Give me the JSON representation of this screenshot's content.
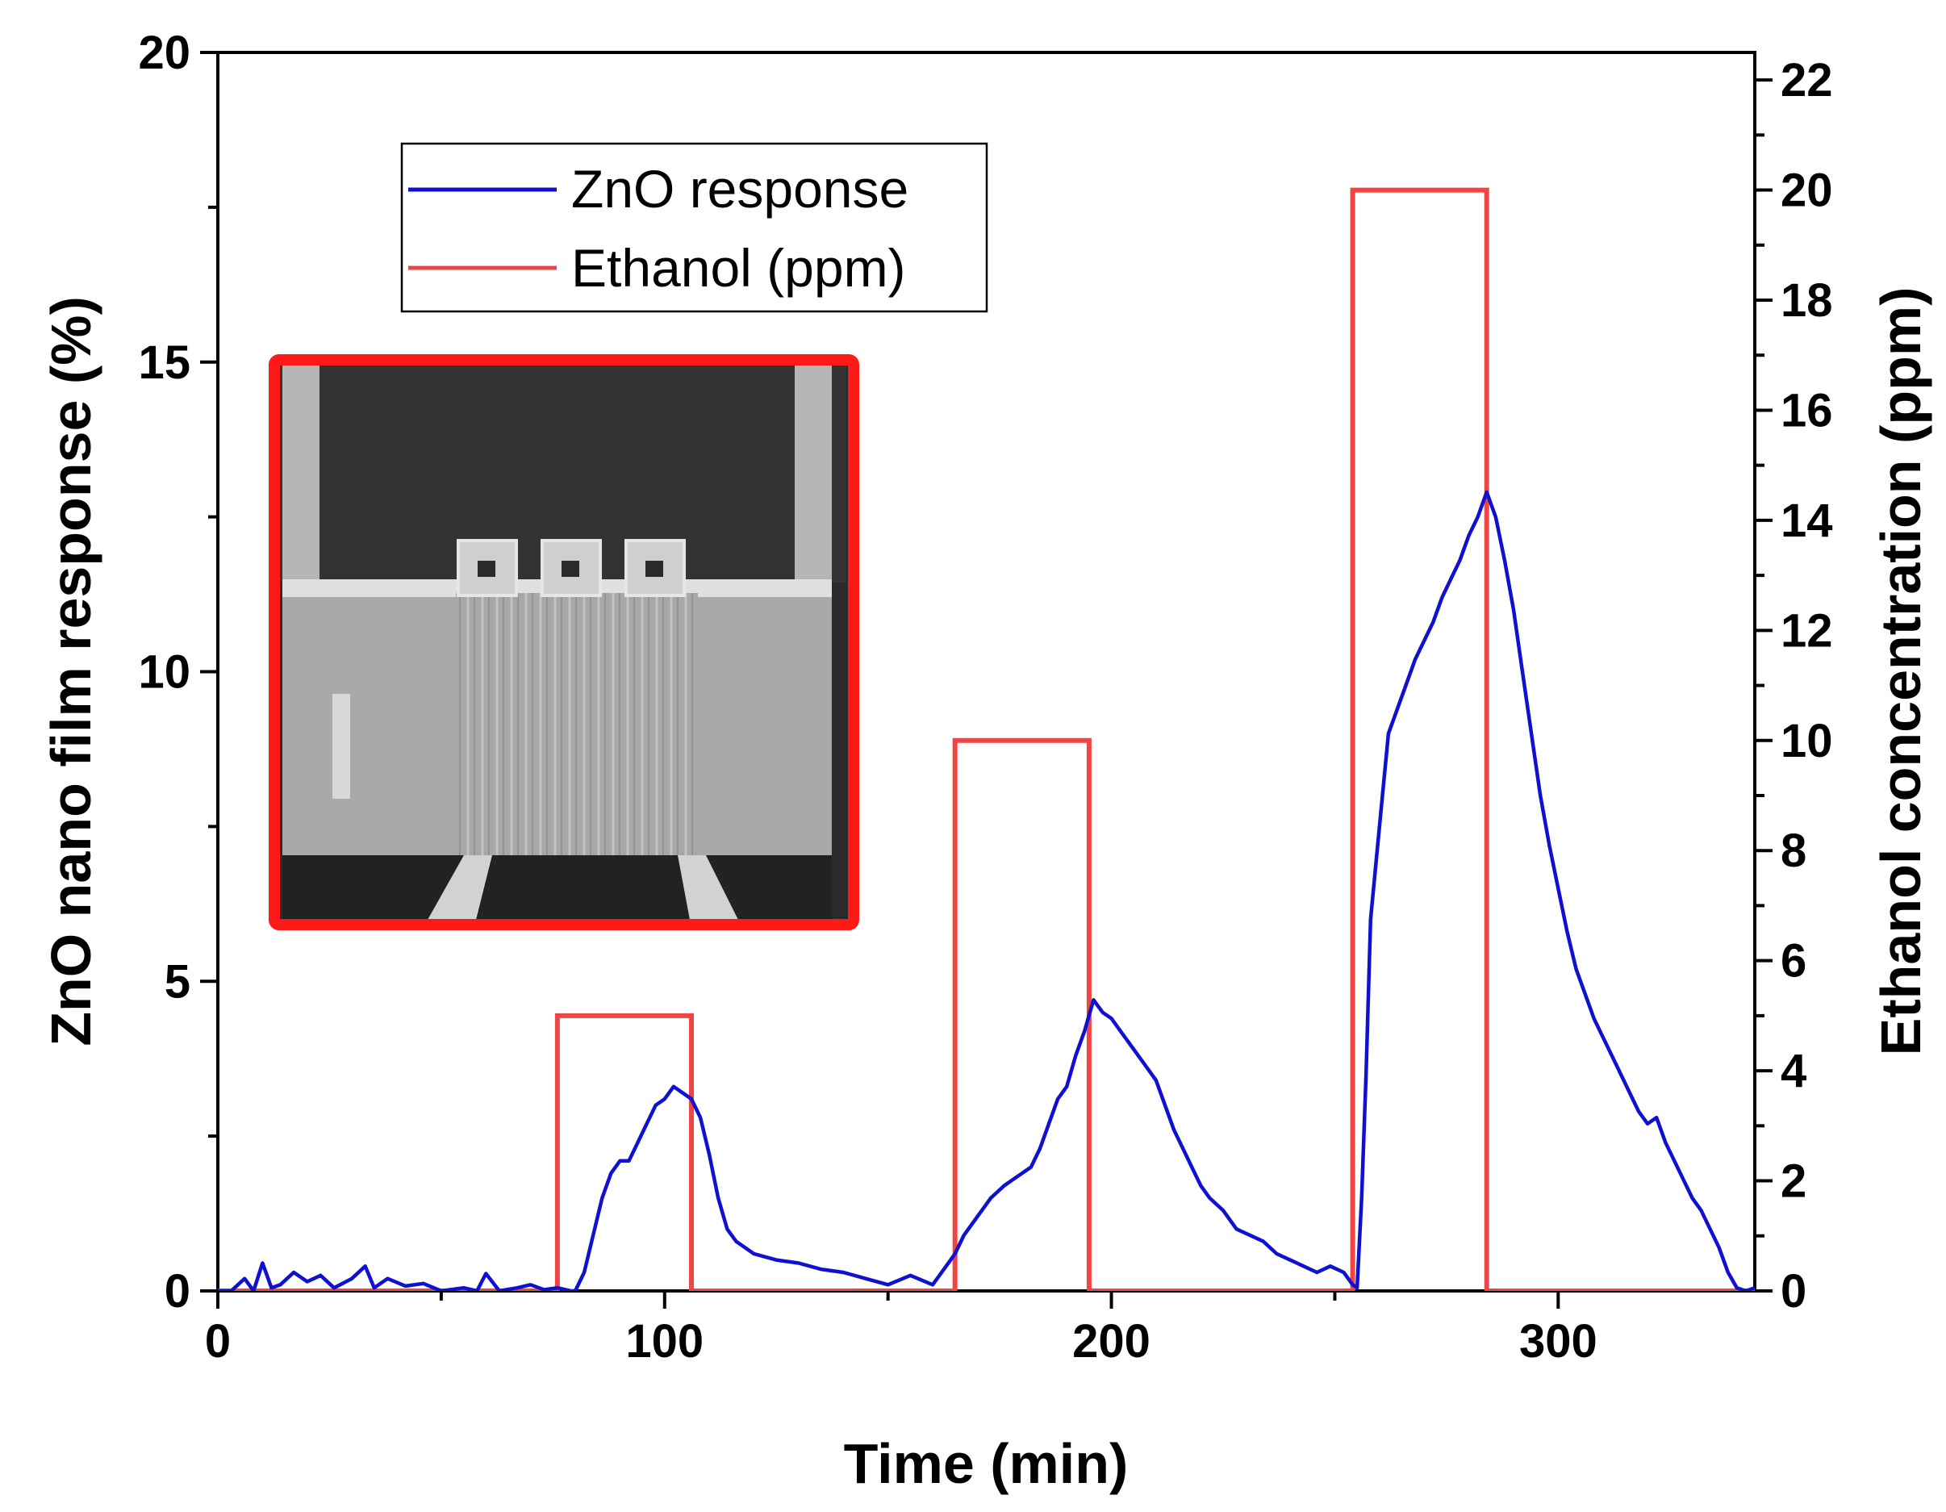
{
  "chart_data": {
    "type": "line",
    "xlabel": "Time (min)",
    "ylabel": "ZnO nano film response (%)",
    "y2label": "Ethanol concentration (ppm)",
    "xlim": [
      0,
      344
    ],
    "ylim": [
      0,
      20
    ],
    "y2lim": [
      0,
      22.5
    ],
    "x_ticks": [
      0,
      100,
      200,
      300
    ],
    "y_ticks": [
      0,
      5,
      10,
      15,
      20
    ],
    "y2_ticks": [
      0,
      2,
      4,
      6,
      8,
      10,
      12,
      14,
      16,
      18,
      20,
      22
    ],
    "legend_position": "top-left",
    "legend": [
      "ZnO response",
      "Ethanol (ppm)"
    ],
    "colors": {
      "response": "#1010d0",
      "ethanol": "#f04545",
      "inset_border": "#ff1a1a"
    },
    "series": [
      {
        "name": "ZnO response",
        "axis": "left",
        "x": [
          0,
          3,
          6,
          8,
          10,
          12,
          14,
          17,
          20,
          23,
          26,
          30,
          33,
          35,
          38,
          42,
          46,
          50,
          55,
          58,
          60,
          63,
          67,
          70,
          73,
          76,
          79,
          80,
          82,
          84,
          86,
          88,
          90,
          92,
          94,
          96,
          98,
          100,
          102,
          104,
          106,
          108,
          110,
          112,
          114,
          116,
          118,
          120,
          125,
          130,
          135,
          140,
          145,
          150,
          155,
          160,
          163,
          165,
          167,
          170,
          173,
          176,
          178,
          180,
          182,
          184,
          186,
          188,
          190,
          192,
          194,
          196,
          198,
          200,
          202,
          204,
          206,
          208,
          210,
          212,
          214,
          216,
          218,
          220,
          222,
          225,
          228,
          231,
          234,
          237,
          240,
          243,
          246,
          249,
          252,
          254,
          255,
          256,
          257,
          258,
          260,
          262,
          264,
          266,
          268,
          270,
          272,
          274,
          276,
          278,
          280,
          282,
          284,
          286,
          288,
          290,
          292,
          294,
          296,
          298,
          300,
          302,
          304,
          306,
          308,
          310,
          312,
          314,
          316,
          318,
          320,
          322,
          324,
          326,
          328,
          330,
          332,
          334,
          336,
          338,
          340,
          342,
          344
        ],
        "values": [
          0.0,
          0.0,
          0.2,
          0.0,
          0.45,
          0.05,
          0.1,
          0.3,
          0.15,
          0.25,
          0.05,
          0.2,
          0.4,
          0.05,
          0.2,
          0.08,
          0.12,
          0.0,
          0.05,
          0.0,
          0.28,
          0.0,
          0.05,
          0.1,
          0.02,
          0.05,
          0.0,
          0.0,
          0.3,
          0.9,
          1.5,
          1.9,
          2.1,
          2.1,
          2.4,
          2.7,
          3.0,
          3.1,
          3.3,
          3.2,
          3.1,
          2.8,
          2.2,
          1.5,
          1.0,
          0.8,
          0.7,
          0.6,
          0.5,
          0.45,
          0.35,
          0.3,
          0.2,
          0.1,
          0.25,
          0.1,
          0.4,
          0.6,
          0.9,
          1.2,
          1.5,
          1.7,
          1.8,
          1.9,
          2.0,
          2.3,
          2.7,
          3.1,
          3.3,
          3.8,
          4.2,
          4.7,
          4.5,
          4.4,
          4.2,
          4.0,
          3.8,
          3.6,
          3.4,
          3.0,
          2.6,
          2.3,
          2.0,
          1.7,
          1.5,
          1.3,
          1.0,
          0.9,
          0.8,
          0.6,
          0.5,
          0.4,
          0.3,
          0.4,
          0.3,
          0.1,
          0.05,
          1.5,
          3.5,
          6.0,
          7.5,
          9.0,
          9.4,
          9.8,
          10.2,
          10.5,
          10.8,
          11.2,
          11.5,
          11.8,
          12.2,
          12.5,
          12.9,
          12.5,
          11.8,
          11.0,
          10.0,
          9.0,
          8.0,
          7.2,
          6.5,
          5.8,
          5.2,
          4.8,
          4.4,
          4.1,
          3.8,
          3.5,
          3.2,
          2.9,
          2.7,
          2.8,
          2.4,
          2.1,
          1.8,
          1.5,
          1.3,
          1.0,
          0.7,
          0.3,
          0.05,
          0.0,
          0.05
        ]
      },
      {
        "name": "Ethanol (ppm)",
        "axis": "right",
        "x": [
          0,
          76,
          76,
          106,
          106,
          165,
          165,
          195,
          195,
          254,
          254,
          284,
          284,
          344
        ],
        "values": [
          0,
          0,
          5,
          5,
          0,
          0,
          10,
          10,
          0,
          0,
          20,
          20,
          0,
          0
        ]
      }
    ]
  },
  "inset": {
    "description_name": "sem-inset-image"
  }
}
